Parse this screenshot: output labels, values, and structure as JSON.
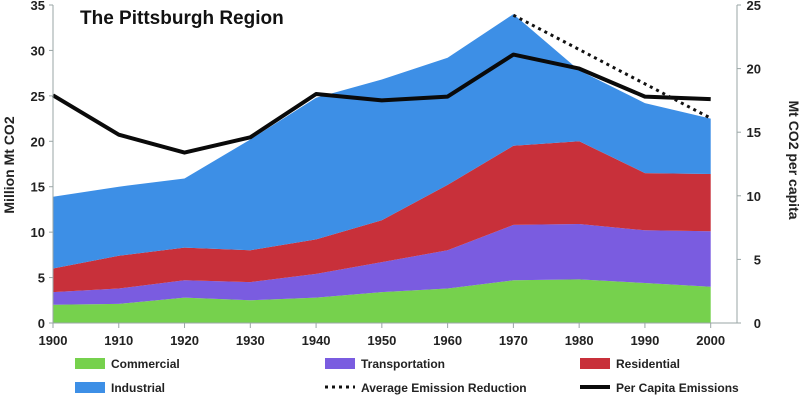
{
  "chart_data": {
    "type": "area",
    "title": "The Pittsburgh Region",
    "ylabel": "Million Mt CO2",
    "y2label": "Mt CO2 per capita",
    "x": [
      1900,
      1910,
      1920,
      1930,
      1940,
      1950,
      1960,
      1970,
      1980,
      1990,
      2000
    ],
    "x_ticks": [
      "1900",
      "1910",
      "1920",
      "1930",
      "1940",
      "1950",
      "1960",
      "1970",
      "1980",
      "1990",
      "2000"
    ],
    "xlim": [
      1900,
      2004
    ],
    "ylim": [
      0,
      35
    ],
    "y_ticks": [
      "0",
      "5",
      "10",
      "15",
      "20",
      "25",
      "30",
      "35"
    ],
    "y2lim": [
      0,
      25
    ],
    "y2_ticks": [
      "0",
      "5",
      "10",
      "15",
      "20",
      "25"
    ],
    "stacked": true,
    "series": [
      {
        "name": "Commercial",
        "kind": "area",
        "color": "#76d14d",
        "values": [
          2.0,
          2.1,
          2.8,
          2.5,
          2.8,
          3.4,
          3.8,
          4.7,
          4.8,
          4.4,
          4.0
        ]
      },
      {
        "name": "Transportation",
        "kind": "area",
        "color": "#7a5ce0",
        "values": [
          1.4,
          1.7,
          1.9,
          2.0,
          2.6,
          3.3,
          4.2,
          6.1,
          6.1,
          5.8,
          6.1
        ]
      },
      {
        "name": "Residential",
        "kind": "area",
        "color": "#c8303a",
        "values": [
          2.6,
          3.6,
          3.6,
          3.5,
          3.8,
          4.6,
          7.2,
          8.7,
          9.1,
          6.3,
          6.3
        ]
      },
      {
        "name": "Industrial",
        "kind": "area",
        "color": "#3d8fe6",
        "values": [
          7.9,
          7.6,
          7.6,
          12.2,
          15.6,
          15.5,
          14.0,
          14.5,
          7.8,
          7.7,
          6.1
        ]
      },
      {
        "name": "Per Capita Emissions",
        "kind": "line",
        "axis": "right",
        "color": "#0a0a0a",
        "x": [
          1900,
          1910,
          1920,
          1930,
          1940,
          1950,
          1960,
          1970,
          1980,
          1990,
          2000
        ],
        "values": [
          17.9,
          14.8,
          13.4,
          14.6,
          18.0,
          17.5,
          17.8,
          21.1,
          20.0,
          17.8,
          17.6
        ]
      },
      {
        "name": "Average Emission Reduction",
        "kind": "line",
        "axis": "right",
        "style": "dotted",
        "color": "#111111",
        "x": [
          1970,
          2000
        ],
        "values": [
          24.2,
          16.1
        ]
      }
    ],
    "legend": {
      "placement": "bottom",
      "items": [
        {
          "label": "Commercial",
          "swatch": "box",
          "color": "#76d14d"
        },
        {
          "label": "Transportation",
          "swatch": "box",
          "color": "#7a5ce0"
        },
        {
          "label": "Residential",
          "swatch": "box",
          "color": "#c8303a"
        },
        {
          "label": "Industrial",
          "swatch": "box",
          "color": "#3d8fe6"
        },
        {
          "label": "Average Emission Reduction",
          "swatch": "dots",
          "color": "#111111"
        },
        {
          "label": "Per Capita Emissions",
          "swatch": "line",
          "color": "#0a0a0a"
        }
      ]
    },
    "grid": false
  }
}
